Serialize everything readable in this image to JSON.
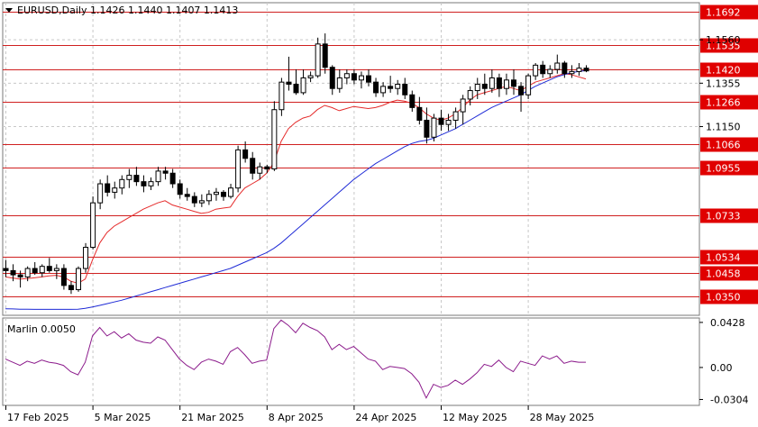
{
  "chart_data": [
    {
      "type": "candlestick",
      "title": "EURUSD,Daily  1.1426 1.1440 1.1407 1.1413",
      "symbol": "EURUSD",
      "timeframe": "Daily",
      "ohlc_last": {
        "open": 1.1426,
        "high": 1.144,
        "low": 1.1407,
        "close": 1.1413
      },
      "ylim": [
        1.0259,
        1.1735
      ],
      "y_ticks": [
        1.156,
        1.1355,
        1.115
      ],
      "level_labels": [
        "1.1692",
        "1.1535",
        "1.1420",
        "1.1266",
        "1.1066",
        "1.0955",
        "1.0733",
        "1.0534",
        "1.0458",
        "1.0350"
      ],
      "levels": [
        1.1692,
        1.1535,
        1.142,
        1.1266,
        1.1066,
        1.0955,
        1.0733,
        1.0534,
        1.0458,
        1.035
      ],
      "x_labels": [
        "17 Feb 2025",
        "5 Mar 2025",
        "21 Mar 2025",
        "8 Apr 2025",
        "24 Apr 2025",
        "12 May 2025",
        "28 May 2025"
      ],
      "x_label_index": [
        0,
        12,
        24,
        36,
        48,
        60,
        72
      ],
      "candles": [
        [
          1.048,
          1.052,
          1.044,
          1.047
        ],
        [
          1.047,
          1.05,
          1.042,
          1.045
        ],
        [
          1.045,
          1.047,
          1.039,
          1.044
        ],
        [
          1.044,
          1.049,
          1.042,
          1.048
        ],
        [
          1.048,
          1.051,
          1.045,
          1.046
        ],
        [
          1.046,
          1.05,
          1.044,
          1.049
        ],
        [
          1.049,
          1.053,
          1.046,
          1.047
        ],
        [
          1.047,
          1.05,
          1.043,
          1.048
        ],
        [
          1.048,
          1.05,
          1.038,
          1.04
        ],
        [
          1.04,
          1.042,
          1.036,
          1.038
        ],
        [
          1.038,
          1.049,
          1.037,
          1.048
        ],
        [
          1.048,
          1.06,
          1.046,
          1.058
        ],
        [
          1.058,
          1.082,
          1.057,
          1.079
        ],
        [
          1.079,
          1.09,
          1.076,
          1.088
        ],
        [
          1.088,
          1.092,
          1.082,
          1.084
        ],
        [
          1.084,
          1.089,
          1.081,
          1.086
        ],
        [
          1.086,
          1.092,
          1.083,
          1.09
        ],
        [
          1.09,
          1.095,
          1.086,
          1.092
        ],
        [
          1.092,
          1.096,
          1.087,
          1.089
        ],
        [
          1.089,
          1.092,
          1.084,
          1.087
        ],
        [
          1.087,
          1.091,
          1.085,
          1.089
        ],
        [
          1.089,
          1.096,
          1.087,
          1.094
        ],
        [
          1.094,
          1.096,
          1.09,
          1.093
        ],
        [
          1.093,
          1.095,
          1.086,
          1.088
        ],
        [
          1.088,
          1.09,
          1.081,
          1.083
        ],
        [
          1.083,
          1.086,
          1.08,
          1.082
        ],
        [
          1.082,
          1.084,
          1.077,
          1.079
        ],
        [
          1.079,
          1.083,
          1.077,
          1.08
        ],
        [
          1.08,
          1.085,
          1.078,
          1.083
        ],
        [
          1.083,
          1.086,
          1.08,
          1.084
        ],
        [
          1.084,
          1.085,
          1.08,
          1.082
        ],
        [
          1.082,
          1.088,
          1.081,
          1.086
        ],
        [
          1.086,
          1.106,
          1.084,
          1.104
        ],
        [
          1.104,
          1.108,
          1.098,
          1.1
        ],
        [
          1.1,
          1.103,
          1.09,
          1.093
        ],
        [
          1.093,
          1.098,
          1.09,
          1.096
        ],
        [
          1.096,
          1.097,
          1.093,
          1.095
        ],
        [
          1.095,
          1.127,
          1.094,
          1.123
        ],
        [
          1.123,
          1.138,
          1.12,
          1.136
        ],
        [
          1.136,
          1.148,
          1.132,
          1.135
        ],
        [
          1.135,
          1.142,
          1.13,
          1.131
        ],
        [
          1.131,
          1.142,
          1.13,
          1.138
        ],
        [
          1.138,
          1.141,
          1.136,
          1.139
        ],
        [
          1.139,
          1.157,
          1.138,
          1.154
        ],
        [
          1.154,
          1.159,
          1.14,
          1.143
        ],
        [
          1.143,
          1.144,
          1.13,
          1.133
        ],
        [
          1.133,
          1.142,
          1.131,
          1.138
        ],
        [
          1.138,
          1.142,
          1.135,
          1.14
        ],
        [
          1.14,
          1.142,
          1.135,
          1.137
        ],
        [
          1.137,
          1.141,
          1.133,
          1.139
        ],
        [
          1.139,
          1.142,
          1.134,
          1.136
        ],
        [
          1.136,
          1.138,
          1.129,
          1.131
        ],
        [
          1.131,
          1.136,
          1.129,
          1.134
        ],
        [
          1.134,
          1.139,
          1.131,
          1.133
        ],
        [
          1.133,
          1.137,
          1.13,
          1.135
        ],
        [
          1.135,
          1.138,
          1.128,
          1.13
        ],
        [
          1.13,
          1.132,
          1.122,
          1.124
        ],
        [
          1.124,
          1.129,
          1.116,
          1.118
        ],
        [
          1.118,
          1.124,
          1.107,
          1.11
        ],
        [
          1.11,
          1.121,
          1.108,
          1.119
        ],
        [
          1.119,
          1.123,
          1.113,
          1.116
        ],
        [
          1.116,
          1.121,
          1.113,
          1.118
        ],
        [
          1.118,
          1.124,
          1.114,
          1.122
        ],
        [
          1.122,
          1.13,
          1.116,
          1.128
        ],
        [
          1.128,
          1.134,
          1.125,
          1.132
        ],
        [
          1.132,
          1.138,
          1.128,
          1.135
        ],
        [
          1.135,
          1.14,
          1.13,
          1.133
        ],
        [
          1.133,
          1.142,
          1.131,
          1.138
        ],
        [
          1.138,
          1.14,
          1.129,
          1.133
        ],
        [
          1.133,
          1.14,
          1.13,
          1.137
        ],
        [
          1.137,
          1.142,
          1.13,
          1.134
        ],
        [
          1.134,
          1.136,
          1.122,
          1.13
        ],
        [
          1.13,
          1.14,
          1.128,
          1.139
        ],
        [
          1.139,
          1.145,
          1.137,
          1.144
        ],
        [
          1.144,
          1.146,
          1.138,
          1.14
        ],
        [
          1.14,
          1.144,
          1.138,
          1.142
        ],
        [
          1.142,
          1.149,
          1.14,
          1.145
        ],
        [
          1.145,
          1.146,
          1.138,
          1.14
        ],
        [
          1.14,
          1.144,
          1.138,
          1.141
        ],
        [
          1.141,
          1.145,
          1.139,
          1.1426
        ],
        [
          1.1426,
          1.144,
          1.1407,
          1.1413
        ]
      ],
      "series": [
        {
          "name": "",
          "color": "#e52b2b",
          "values": [
            1.044,
            1.0435,
            1.043,
            1.0432,
            1.0436,
            1.044,
            1.0445,
            1.0448,
            1.044,
            1.042,
            1.041,
            1.043,
            1.052,
            1.06,
            1.065,
            1.068,
            1.07,
            1.072,
            1.074,
            1.076,
            1.0775,
            1.079,
            1.08,
            1.078,
            1.077,
            1.076,
            1.075,
            1.074,
            1.0745,
            1.076,
            1.0765,
            1.077,
            1.082,
            1.086,
            1.088,
            1.09,
            1.093,
            1.098,
            1.108,
            1.114,
            1.117,
            1.119,
            1.12,
            1.123,
            1.125,
            1.124,
            1.1225,
            1.1235,
            1.1245,
            1.124,
            1.1235,
            1.124,
            1.125,
            1.1265,
            1.1275,
            1.127,
            1.126,
            1.124,
            1.121,
            1.119,
            1.118,
            1.119,
            1.121,
            1.124,
            1.1275,
            1.13,
            1.131,
            1.132,
            1.133,
            1.134,
            1.133,
            1.132,
            1.134,
            1.136,
            1.137,
            1.138,
            1.139,
            1.14,
            1.1395,
            1.1385,
            1.1375
          ]
        },
        {
          "name": "",
          "color": "#1f2bd6",
          "values": [
            1.029,
            1.0289,
            1.0288,
            1.0288,
            1.0287,
            1.0287,
            1.0287,
            1.0287,
            1.0287,
            1.0287,
            1.0288,
            1.0292,
            1.0298,
            1.0306,
            1.0314,
            1.0322,
            1.033,
            1.034,
            1.035,
            1.036,
            1.037,
            1.038,
            1.039,
            1.04,
            1.041,
            1.042,
            1.043,
            1.044,
            1.045,
            1.046,
            1.047,
            1.048,
            1.0495,
            1.051,
            1.0525,
            1.054,
            1.0555,
            1.0575,
            1.06,
            1.063,
            1.066,
            1.069,
            1.072,
            1.075,
            1.078,
            1.081,
            1.084,
            1.087,
            1.09,
            1.0925,
            1.095,
            1.0975,
            1.0995,
            1.1015,
            1.1035,
            1.1055,
            1.107,
            1.108,
            1.1085,
            1.1095,
            1.111,
            1.1125,
            1.114,
            1.116,
            1.118,
            1.12,
            1.122,
            1.124,
            1.1255,
            1.127,
            1.1285,
            1.13,
            1.132,
            1.134,
            1.1355,
            1.137,
            1.1385,
            1.1395,
            1.1405,
            1.141,
            1.1415
          ]
        }
      ]
    },
    {
      "type": "line",
      "title": "Marlin 0.0050",
      "ylim": [
        -0.036,
        0.047
      ],
      "y_tick_labels": [
        "0.0428",
        "0.00",
        "-0.0304"
      ],
      "y_ticks": [
        0.0428,
        0.0,
        -0.0304
      ],
      "series": [
        {
          "name": "",
          "color": "#8b1a8b",
          "values": [
            0.008,
            0.005,
            0.002,
            0.006,
            0.004,
            0.007,
            0.005,
            0.004,
            0.002,
            -0.004,
            -0.007,
            0.005,
            0.03,
            0.038,
            0.03,
            0.034,
            0.028,
            0.032,
            0.026,
            0.024,
            0.023,
            0.029,
            0.026,
            0.017,
            0.008,
            0.002,
            -0.002,
            0.005,
            0.008,
            0.006,
            0.003,
            0.015,
            0.019,
            0.012,
            0.004,
            0.006,
            0.007,
            0.037,
            0.045,
            0.04,
            0.033,
            0.042,
            0.038,
            0.035,
            0.029,
            0.017,
            0.022,
            0.017,
            0.02,
            0.014,
            0.008,
            0.006,
            -0.002,
            0.001,
            0.0,
            -0.001,
            -0.006,
            -0.014,
            -0.029,
            -0.016,
            -0.019,
            -0.017,
            -0.012,
            -0.016,
            -0.011,
            -0.005,
            0.003,
            0.001,
            0.007,
            0.0,
            -0.004,
            0.006,
            0.004,
            0.002,
            0.011,
            0.008,
            0.011,
            0.004,
            0.006,
            0.005,
            0.005
          ]
        }
      ]
    }
  ]
}
